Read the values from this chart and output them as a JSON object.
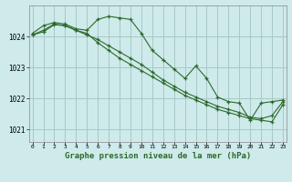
{
  "background_color": "#ceeaea",
  "grid_color": "#a8c8c8",
  "line_color": "#2d6a2d",
  "xlabel": "Graphe pression niveau de la mer (hPa)",
  "yticks": [
    1021,
    1022,
    1023,
    1024
  ],
  "xticks": [
    0,
    1,
    2,
    3,
    4,
    5,
    6,
    7,
    8,
    9,
    10,
    11,
    12,
    13,
    14,
    15,
    16,
    17,
    18,
    19,
    20,
    21,
    22,
    23
  ],
  "xlim": [
    -0.3,
    23.3
  ],
  "ylim": [
    1020.6,
    1025.0
  ],
  "series1_x": [
    0,
    1,
    2,
    3,
    4,
    5,
    6,
    7,
    8,
    9,
    10,
    11,
    12,
    13,
    14,
    15,
    16,
    17,
    18,
    19,
    20,
    21,
    22,
    23
  ],
  "series1_y": [
    1024.1,
    1024.35,
    1024.45,
    1024.4,
    1024.25,
    1024.2,
    1024.55,
    1024.65,
    1024.6,
    1024.55,
    1024.1,
    1023.55,
    1023.25,
    1022.95,
    1022.65,
    1023.05,
    1022.65,
    1022.05,
    1021.9,
    1021.85,
    1021.3,
    1021.85,
    1021.9,
    1021.95
  ],
  "series2_x": [
    0,
    1,
    2,
    3,
    4,
    5,
    6,
    7,
    8,
    9,
    10,
    11,
    12,
    13,
    14,
    15,
    16,
    17,
    18,
    19,
    20,
    21,
    22,
    23
  ],
  "series2_y": [
    1024.05,
    1024.2,
    1024.4,
    1024.35,
    1024.2,
    1024.1,
    1023.8,
    1023.55,
    1023.3,
    1023.1,
    1022.9,
    1022.7,
    1022.5,
    1022.3,
    1022.1,
    1021.95,
    1021.8,
    1021.65,
    1021.55,
    1021.45,
    1021.35,
    1021.3,
    1021.25,
    1021.8
  ],
  "series3_x": [
    0,
    1,
    2,
    3,
    4,
    5,
    6,
    7,
    8,
    9,
    10,
    11,
    12,
    13,
    14,
    15,
    16,
    17,
    18,
    19,
    20,
    21,
    22,
    23
  ],
  "series3_y": [
    1024.05,
    1024.15,
    1024.38,
    1024.35,
    1024.2,
    1024.05,
    1023.9,
    1023.7,
    1023.5,
    1023.3,
    1023.1,
    1022.85,
    1022.6,
    1022.4,
    1022.2,
    1022.05,
    1021.9,
    1021.75,
    1021.65,
    1021.55,
    1021.4,
    1021.35,
    1021.45,
    1021.9
  ]
}
